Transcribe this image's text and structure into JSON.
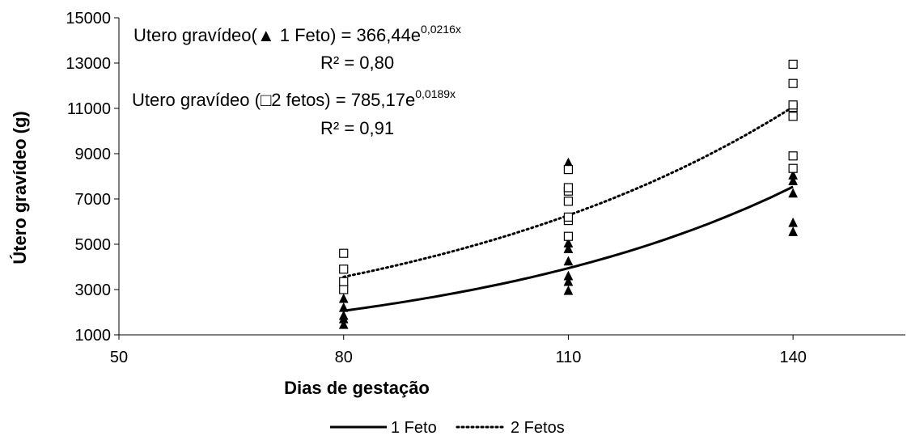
{
  "chart_data": {
    "type": "scatter",
    "xlabel": "Dias de gestação",
    "ylabel": "Útero gravídeo (g)",
    "xlim": [
      50,
      155
    ],
    "ylim": [
      1000,
      15000
    ],
    "xticks": [
      50,
      80,
      110,
      140
    ],
    "yticks": [
      1000,
      3000,
      5000,
      7000,
      9000,
      11000,
      13000,
      15000
    ],
    "grid": false,
    "legend_position": "bottom",
    "series": [
      {
        "name": "1 Feto",
        "marker": "triangle",
        "trend": {
          "a": 366.44,
          "b": 0.0216,
          "style": "solid"
        },
        "points": [
          [
            80,
            1450
          ],
          [
            80,
            1700
          ],
          [
            80,
            1850
          ],
          [
            80,
            2200
          ],
          [
            80,
            2600
          ],
          [
            110,
            2950
          ],
          [
            110,
            3350
          ],
          [
            110,
            3600
          ],
          [
            110,
            4250
          ],
          [
            110,
            4800
          ],
          [
            110,
            5050
          ],
          [
            110,
            8600
          ],
          [
            140,
            5550
          ],
          [
            140,
            5950
          ],
          [
            140,
            7250
          ],
          [
            140,
            7800
          ],
          [
            140,
            8050
          ]
        ]
      },
      {
        "name": "2 Fetos",
        "marker": "square",
        "trend": {
          "a": 785.17,
          "b": 0.0189,
          "style": "dotted"
        },
        "points": [
          [
            80,
            3000
          ],
          [
            80,
            3350
          ],
          [
            80,
            3900
          ],
          [
            80,
            4600
          ],
          [
            110,
            5350
          ],
          [
            110,
            6050
          ],
          [
            110,
            6200
          ],
          [
            110,
            6900
          ],
          [
            110,
            7350
          ],
          [
            110,
            7500
          ],
          [
            110,
            8300
          ],
          [
            140,
            8350
          ],
          [
            140,
            8900
          ],
          [
            140,
            10650
          ],
          [
            140,
            11050
          ],
          [
            140,
            11150
          ],
          [
            140,
            12100
          ],
          [
            140,
            12950
          ]
        ]
      }
    ],
    "annotations": [
      {
        "label_pre": "Utero gravídeo(",
        "symbol": "▲",
        "label_post": " 1 Feto) = 366,44e",
        "exponent": "0,0216x",
        "r2": "R² = 0,80"
      },
      {
        "label_pre": "Utero gravídeo (",
        "symbol": "□",
        "label_post": "2 fetos)  = 785,17e",
        "exponent": "0,0189x",
        "r2": "R² = 0,91"
      }
    ]
  }
}
